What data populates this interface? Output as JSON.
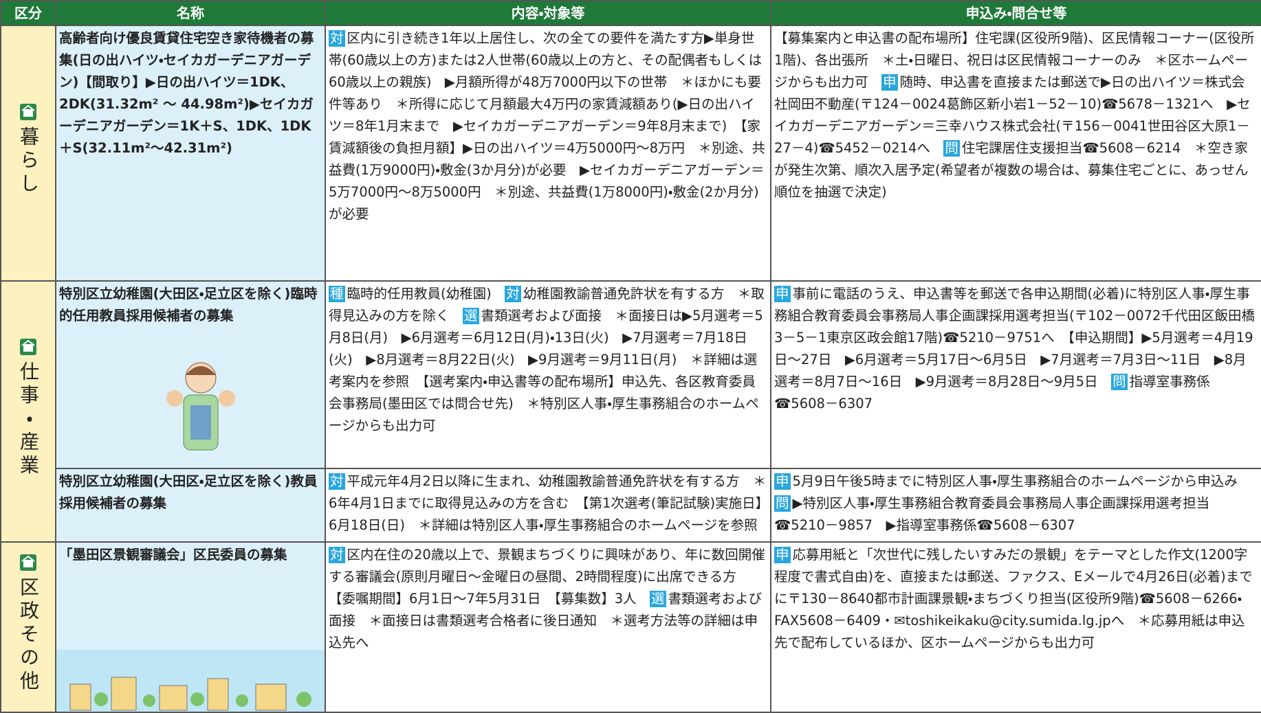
{
  "header": [
    "区分",
    "名称",
    "内容・対象等",
    "申込み・問合せ等"
  ],
  "sections": [
    {
      "category": "暮らし",
      "items": [
        {
          "name": "高齢者向け優良賃貸住宅空き家待機者の募集(日の出ハイツ・セイカガーデニアガーデン)【間取り】▶日の出ハイツ＝1DK、2DK(31.32m² ～ 44.98m²)▶セイカガーデニアガーデン＝1K＋S、1DK、1DK＋S(32.11m²～42.31m²)",
          "content": [
            {
              "tag": "対"
            },
            "区内に引き続き1年以上居住し、次の全ての要件を満たす方▶単身世帯(60歳以上の方)または2人世帯(60歳以上の方と、その配偶者もしくは60歳以上の親族)　▶月額所得が48万7000円以下の世帯　＊ほかにも要件等あり　＊所得に応じて月額最大4万円の家賃減額あり(▶日の出ハイツ＝8年1月末まで　▶セイカガーデニアガーデン＝9年8月末まで)　【家賃減額後の負担月額】▶日の出ハイツ＝4万5000円～8万円　＊別途、共益費(1万9000円)・敷金(3か月分)が必要　▶セイカガーデニアガーデン＝5万7000円～8万5000円　＊別途、共益費(1万8000円)・敷金(2か月分)が必要"
          ],
          "contact": [
            "【募集案内と申込書の配布場所】住宅課(区役所9階)、区民情報コーナー(区役所1階)、各出張所　＊土・日曜日、祝日は区民情報コーナーのみ　＊区ホームページからも出力可　",
            {
              "tag": "申"
            },
            "随時、申込書を直接または郵送で▶日の出ハイツ＝株式会社岡田不動産(〒124－0024葛飾区新小岩1－52－10)☎5678－1321へ　▶セイカガーデニアガーデン＝三幸ハウス株式会社(〒156－0041世田谷区大原1－27－4)☎5452－0214へ　",
            {
              "tag": "問"
            },
            "住宅課居住支援担当☎5608－6214　＊空き家が発生次第、順次入居予定(希望者が複数の場合は、募集住宅ごとに、あっせん順位を抽選で決定)"
          ]
        }
      ]
    },
    {
      "category": "仕事・産業",
      "items": [
        {
          "name": "特別区立幼稚園(大田区・足立区を除く)臨時的任用教員採用候補者の募集",
          "content": [
            {
              "tag": "種"
            },
            "臨時的任用教員(幼稚園)　",
            {
              "tag": "対"
            },
            "幼稚園教諭普通免許状を有する方　＊取得見込みの方を除く　",
            {
              "tag": "選"
            },
            "書類選考および面接　＊面接日は▶5月選考＝5月8日(月)　▶6月選考＝6月12日(月)・13日(火)　▶7月選考＝7月18日(火)　▶8月選考＝8月22日(火)　▶9月選考＝9月11日(月)　＊詳細は選考案内を参照　【選考案内・申込書等の配布場所】申込先、各区教育委員会事務局(墨田区では問合せ先)　＊特別区人事・厚生事務組合のホームページからも出力可"
          ],
          "contact": [
            {
              "tag": "申"
            },
            "事前に電話のうえ、申込書等を郵送で各申込期間(必着)に特別区人事・厚生事務組合教育委員会事務局人事企画課採用選考担当(〒102－0072千代田区飯田橋3－5－1東京区政会館17階)☎5210－9751へ　【申込期間】▶5月選考＝4月19日～27日　▶6月選考＝5月17日～6月5日　▶7月選考＝7月3日～11日　▶8月選考＝8月7日～16日　▶9月選考＝8月28日～9月5日　",
            {
              "tag": "問"
            },
            "指導室事務係☎5608－6307"
          ]
        },
        {
          "name": "特別区立幼稚園(大田区・足立区を除く)教員採用候補者の募集",
          "content": [
            {
              "tag": "対"
            },
            "平成元年4月2日以降に生まれ、幼稚園教諭普通免許状を有する方　＊6年4月1日までに取得見込みの方を含む　【第1次選考(筆記試験)実施日】6月18日(日)　＊詳細は特別区人事・厚生事務組合のホームページを参照"
          ],
          "contact": [
            {
              "tag": "申"
            },
            "5月9日午後5時までに特別区人事・厚生事務組合のホームページから申込み　",
            {
              "tag": "問"
            },
            "▶特別区人事・厚生事務組合教育委員会事務局人事企画課採用選考担当☎5210－9857　▶指導室事務係☎5608－6307"
          ]
        }
      ]
    },
    {
      "category": "区政その他",
      "items": [
        {
          "name": "「墨田区景観審議会」区民委員の募集",
          "content": [
            {
              "tag": "対"
            },
            "区内在住の20歳以上で、景観まちづくりに興味があり、年に数回開催する審議会(原則月曜日～金曜日の昼間、2時間程度)に出席できる方　【委嘱期間】6月1日～7年5月31日　【募集数】3人　",
            {
              "tag": "選"
            },
            "書類選考および面接　＊面接日は書類選考合格者に後日通知　＊選考方法等の詳細は申込先へ"
          ],
          "contact": [
            {
              "tag": "申"
            },
            "応募用紙と「次世代に残したいすみだの景観」をテーマとした作文(1200字程度で書式自由)を、直接または郵送、ファクス、Eメールで4月26日(必着)までに〒130－8640都市計画課景観・まちづくり担当(区役所9階)☎5608－6266・FAX5608－6409・✉toshikeikaku@city.sumida.lg.jpへ　＊応募用紙は申込先で配布しているほか、区ホームページからも出力可"
          ]
        }
      ]
    }
  ]
}
